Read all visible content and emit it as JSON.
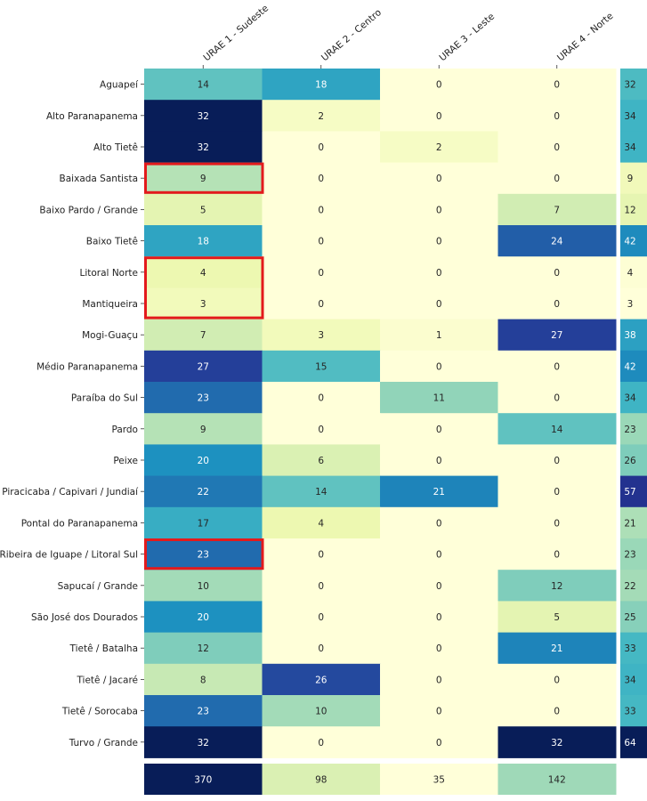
{
  "chart_data": {
    "type": "heatmap",
    "colormap": "YlGnBu",
    "columns": [
      "URAE 1 - Sudeste",
      "URAE 2 - Centro",
      "URAE 3 - Leste",
      "URAE 4 - Norte"
    ],
    "rows": [
      "Aguapeí",
      "Alto Paranapanema",
      "Alto Tietê",
      "Baixada Santista",
      "Baixo Pardo / Grande",
      "Baixo Tietê",
      "Litoral Norte",
      "Mantiqueira",
      "Mogi-Guaçu",
      "Médio Paranapanema",
      "Paraíba do Sul",
      "Pardo",
      "Peixe",
      "Piracicaba / Capivari / Jundiaí",
      "Pontal do Paranapanema",
      "Ribeira de Iguape / Litoral Sul",
      "Sapucaí / Grande",
      "São José dos Dourados",
      "Tietê / Batalha",
      "Tietê / Jacaré",
      "Tietê / Sorocaba",
      "Turvo / Grande"
    ],
    "values": [
      [
        14,
        18,
        0,
        0
      ],
      [
        32,
        2,
        0,
        0
      ],
      [
        32,
        0,
        2,
        0
      ],
      [
        9,
        0,
        0,
        0
      ],
      [
        5,
        0,
        0,
        7
      ],
      [
        18,
        0,
        0,
        24
      ],
      [
        4,
        0,
        0,
        0
      ],
      [
        3,
        0,
        0,
        0
      ],
      [
        7,
        3,
        1,
        27
      ],
      [
        27,
        15,
        0,
        0
      ],
      [
        23,
        0,
        11,
        0
      ],
      [
        9,
        0,
        0,
        14
      ],
      [
        20,
        6,
        0,
        0
      ],
      [
        22,
        14,
        21,
        0
      ],
      [
        17,
        4,
        0,
        0
      ],
      [
        23,
        0,
        0,
        0
      ],
      [
        10,
        0,
        0,
        12
      ],
      [
        20,
        0,
        0,
        5
      ],
      [
        12,
        0,
        0,
        21
      ],
      [
        8,
        26,
        0,
        0
      ],
      [
        23,
        10,
        0,
        0
      ],
      [
        32,
        0,
        0,
        32
      ]
    ],
    "value_range": [
      0,
      32
    ],
    "row_totals": [
      32,
      34,
      34,
      9,
      12,
      42,
      4,
      3,
      38,
      42,
      34,
      23,
      26,
      57,
      21,
      23,
      22,
      25,
      33,
      34,
      33,
      64
    ],
    "row_totals_range": [
      3,
      64
    ],
    "column_totals": [
      370,
      98,
      35,
      142
    ],
    "column_totals_range": [
      35,
      370
    ],
    "highlighted_cells": [
      {
        "row": "Baixada Santista",
        "column": "URAE 1 - Sudeste"
      },
      {
        "row": "Litoral Norte",
        "column": "URAE 1 - Sudeste"
      },
      {
        "row": "Mantiqueira",
        "column": "URAE 1 - Sudeste"
      },
      {
        "row": "Ribeira de Iguape / Litoral Sul",
        "column": "URAE 1 - Sudeste"
      }
    ],
    "highlight_color": "#e31a1c"
  }
}
